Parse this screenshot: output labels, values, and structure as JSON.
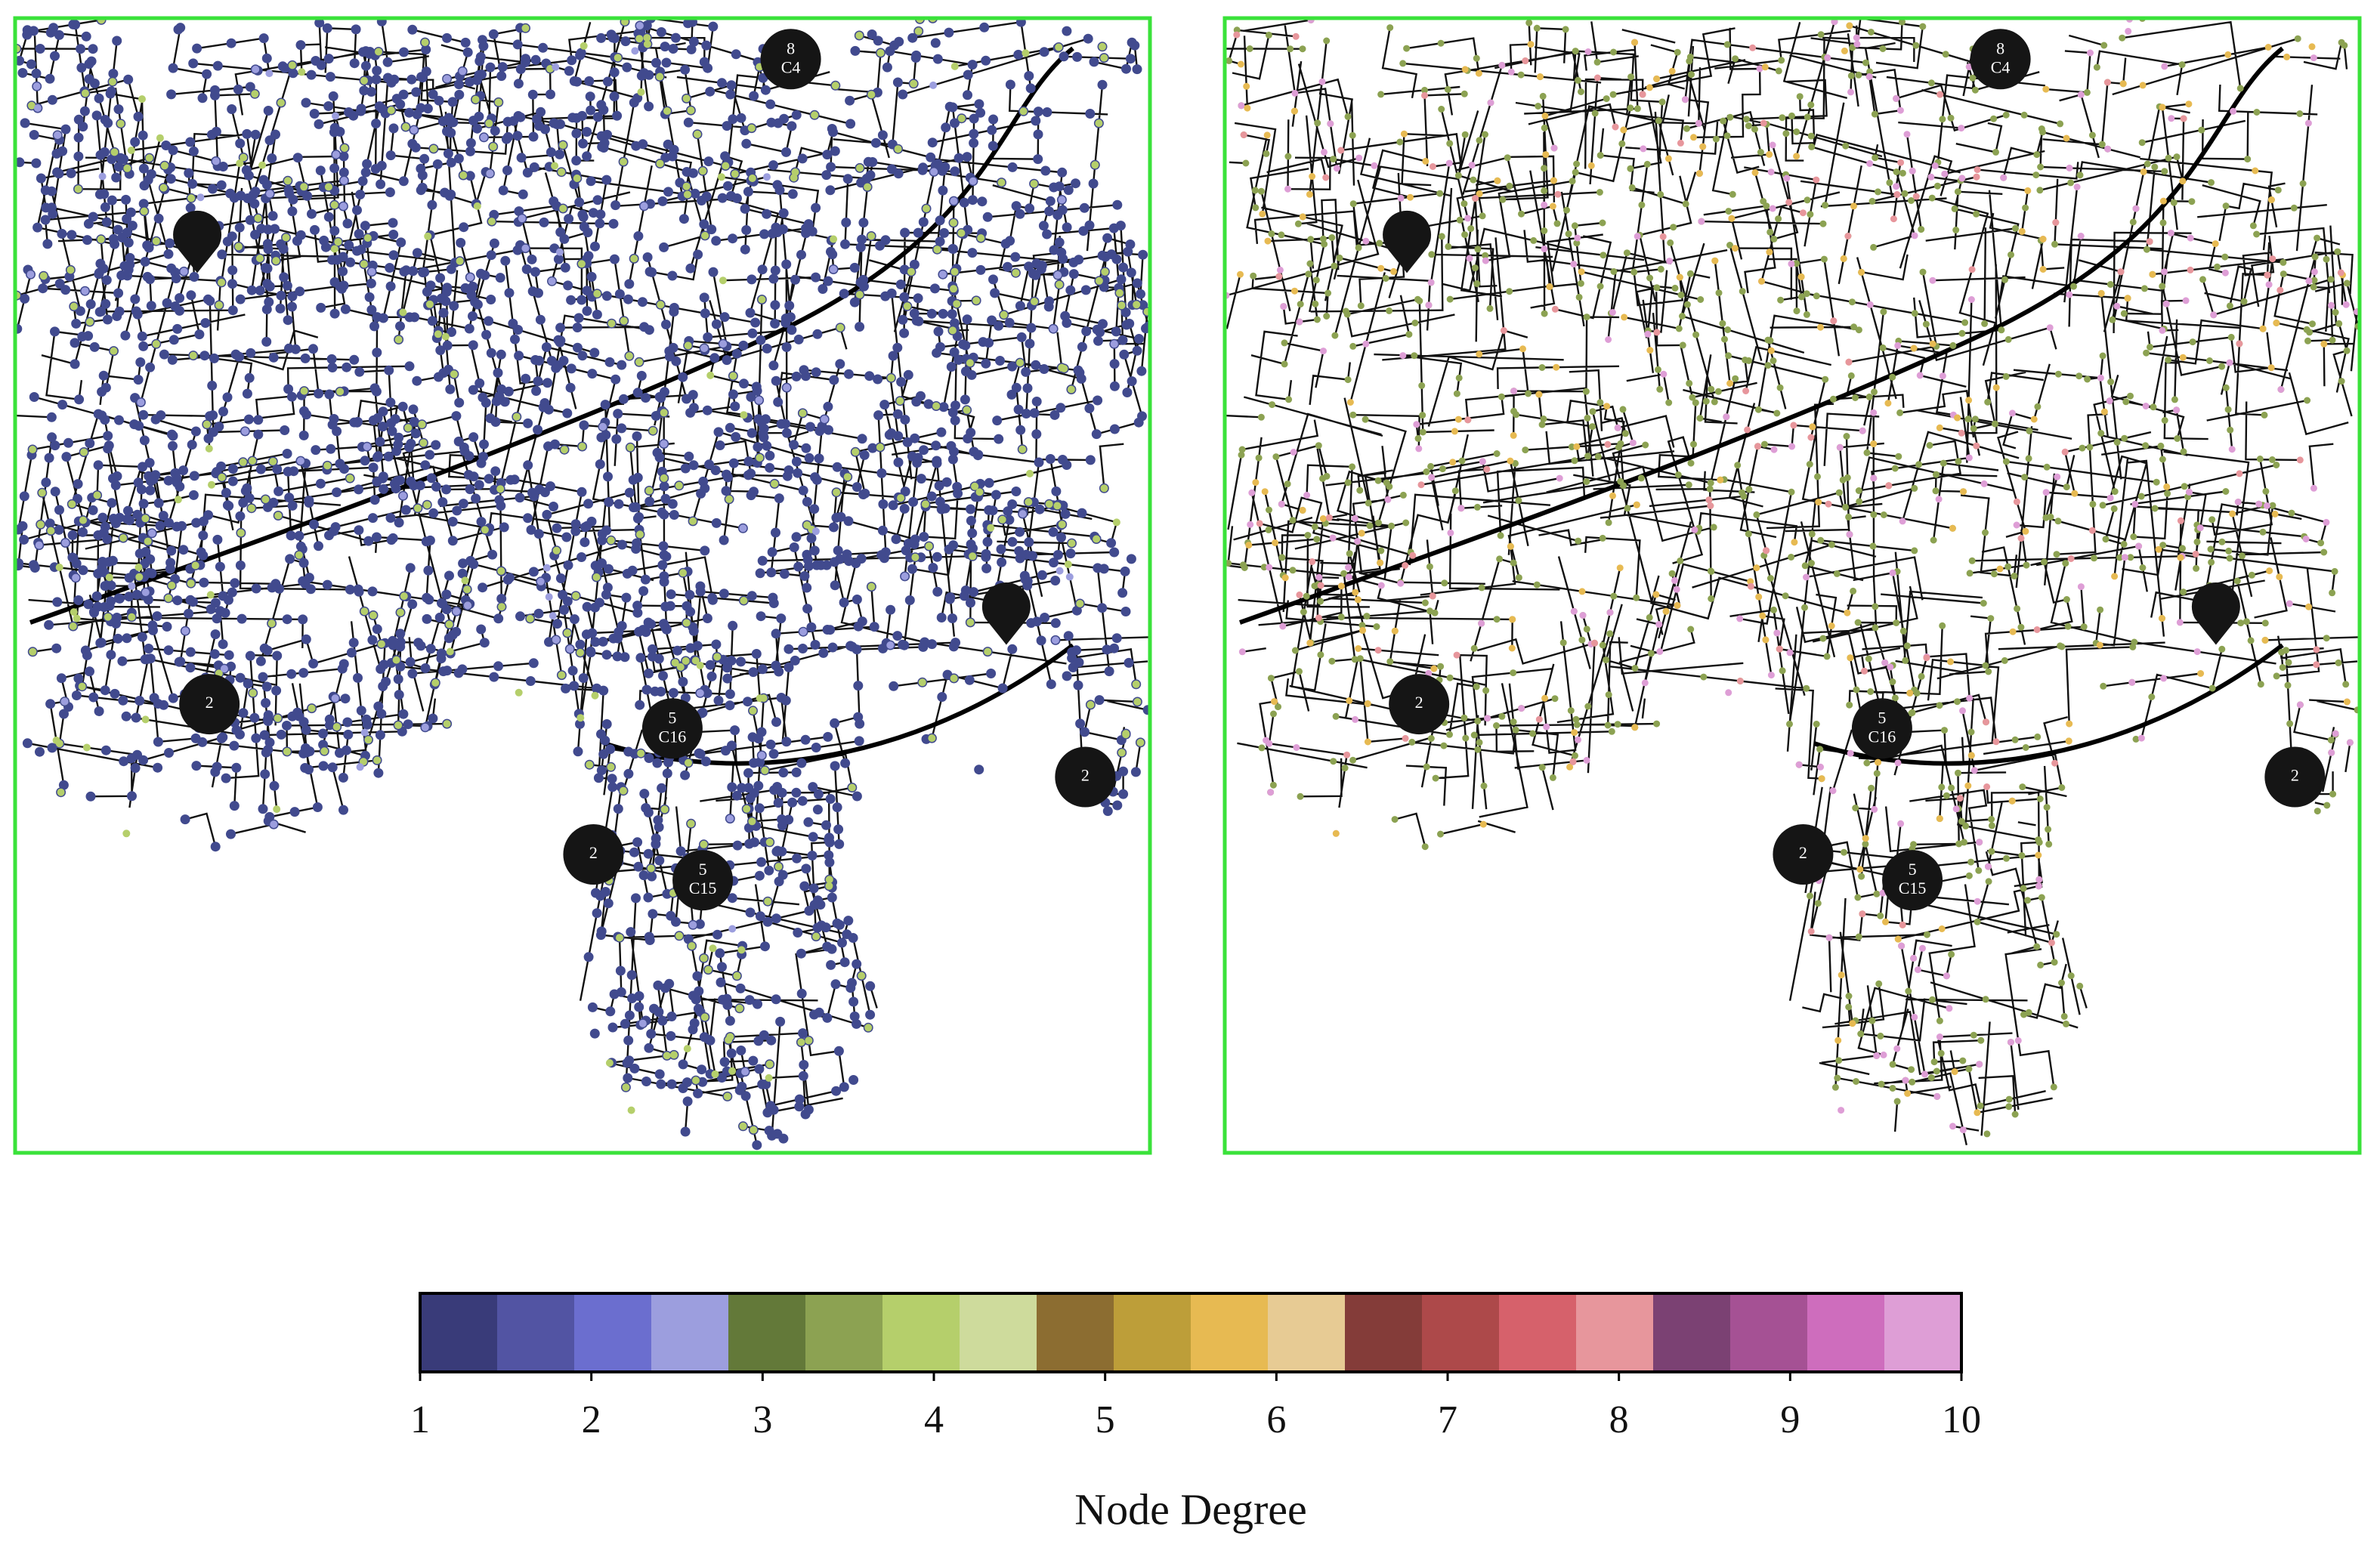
{
  "panels": [
    {
      "markers": [
        {
          "count": "8",
          "label": "C4"
        },
        {
          "count": "2"
        },
        {
          "count": "5",
          "label": "C16"
        },
        {
          "count": "2"
        },
        {
          "count": "5",
          "label": "C15"
        },
        {
          "count": "2"
        }
      ]
    },
    {
      "markers": [
        {
          "count": "8",
          "label": "C4"
        },
        {
          "count": "2"
        },
        {
          "count": "5",
          "label": "C16"
        },
        {
          "count": "2"
        },
        {
          "count": "5",
          "label": "C15"
        },
        {
          "count": "2"
        }
      ]
    }
  ],
  "colorbar": {
    "label": "Node Degree",
    "lim": [
      1,
      10
    ],
    "ticks": [
      1,
      2,
      3,
      4,
      5,
      6,
      7,
      8,
      9,
      10
    ],
    "colors": [
      "#393b79",
      "#5254a3",
      "#6b6ecf",
      "#9c9ede",
      "#637939",
      "#8ca252",
      "#b5cf6b",
      "#cedb9c",
      "#8c6d31",
      "#bd9e39",
      "#e7ba52",
      "#e7cb94",
      "#843c39",
      "#ad494a",
      "#d6616b",
      "#e7969c",
      "#7b4173",
      "#a55194",
      "#ce6dbd",
      "#de9ed6"
    ]
  }
}
